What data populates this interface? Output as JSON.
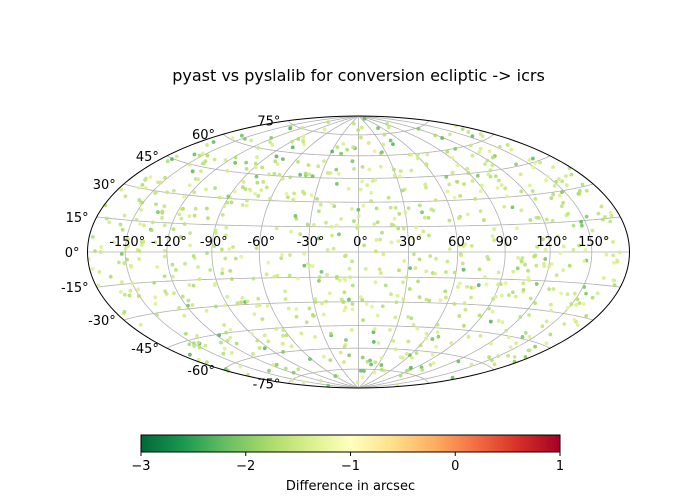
{
  "chart_data": {
    "type": "scatter",
    "projection": "hammer (all-sky)",
    "title": "pyast vs pyslalib for conversion ecliptic -> icrs",
    "xlabel": "",
    "ylabel": "",
    "lon_tick_labels": [
      "-150°",
      "-120°",
      "-90°",
      "-60°",
      "-30°",
      "0°",
      "30°",
      "60°",
      "90°",
      "120°",
      "150°"
    ],
    "lat_tick_labels": [
      "-75°",
      "-60°",
      "-45°",
      "-30°",
      "-15°",
      "0°",
      "15°",
      "30°",
      "45°",
      "60°",
      "75°"
    ],
    "grid": true,
    "colormap": "RdYlGn_r",
    "colorbar": {
      "label": "Difference in arcsec",
      "range": [
        -3,
        1
      ],
      "tick_labels": [
        "−3",
        "−2",
        "−1",
        "0",
        "1"
      ],
      "placement": "bottom"
    },
    "value_range_observed": [
      -2.3,
      -1.3
    ],
    "point_count": 850,
    "point_colors": {
      "dominant": "#eef8b0",
      "dark": "#8ccf6a"
    }
  }
}
